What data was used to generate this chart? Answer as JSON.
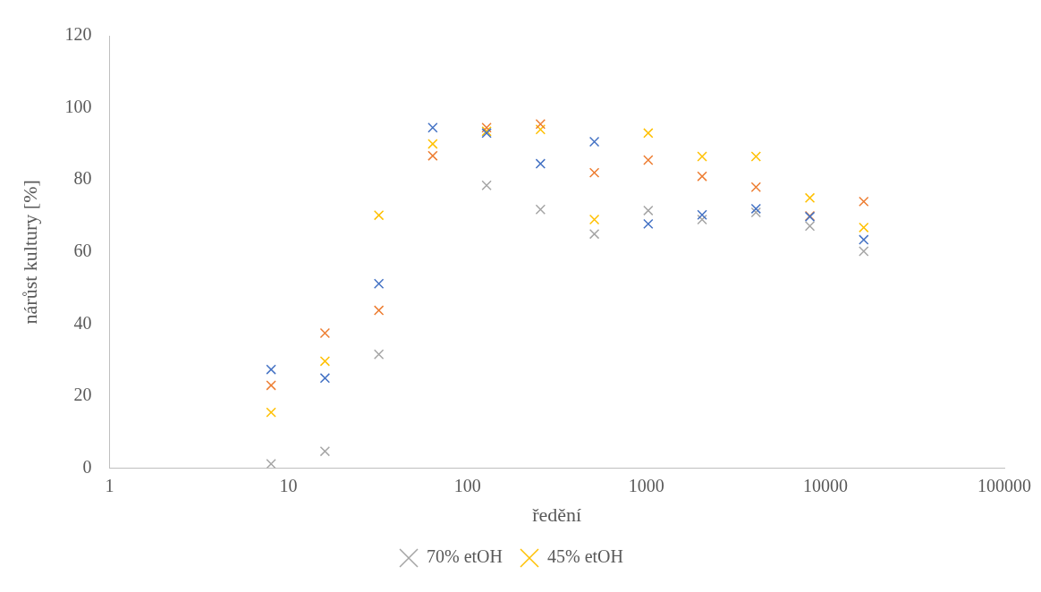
{
  "chart_data": {
    "type": "scatter",
    "xlabel": "ředění",
    "ylabel": "nárůst kultury [%]",
    "log": "x",
    "xlim": [
      1,
      100000
    ],
    "xticks": [
      1,
      10,
      100,
      1000,
      10000,
      100000
    ],
    "ylim": [
      0,
      120
    ],
    "yticks": [
      0,
      20,
      40,
      60,
      80,
      100,
      120
    ],
    "grid": false,
    "legend": "bottom",
    "marker": "cross",
    "x": [
      8,
      16,
      32,
      64,
      128,
      256,
      512,
      1024,
      2048,
      4096,
      8192,
      16384
    ],
    "series": [
      {
        "color": "#4472c4",
        "values": [
          27.4,
          25,
          51.2,
          94.5,
          93,
          84.5,
          90.6,
          67.8,
          70.3,
          72,
          69.8,
          63.4
        ]
      },
      {
        "name": "70% etOH",
        "color": "#a5a5a5",
        "values": [
          1.2,
          4.7,
          31.6,
          null,
          78.5,
          71.8,
          65,
          71.5,
          69,
          71,
          67.2,
          60.2
        ]
      },
      {
        "color": "#ed7d31",
        "values": [
          23,
          37.5,
          43.8,
          86.7,
          94.5,
          95.5,
          82,
          85.5,
          81,
          78,
          70,
          74
        ]
      },
      {
        "name": "45% etOH",
        "color": "#ffc000",
        "values": [
          15.5,
          29.7,
          70.2,
          90,
          93.5,
          94,
          69,
          93,
          86.5,
          86.5,
          75,
          66.8
        ]
      }
    ]
  }
}
